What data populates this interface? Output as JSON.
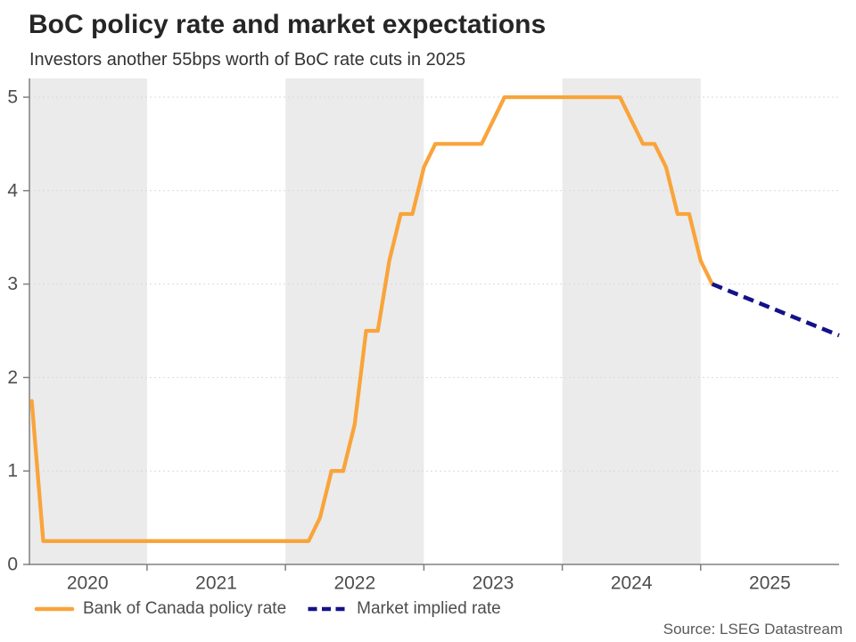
{
  "header": {
    "title": "BoC policy rate and market expectations",
    "subtitle": "Investors another 55bps worth of BoC rate cuts in 2025"
  },
  "legend": [
    {
      "label": "Bank of Canada policy rate",
      "color": "#F9A43B",
      "style": "solid"
    },
    {
      "label": "Market implied rate",
      "color": "#12128A",
      "style": "dashed"
    }
  ],
  "source": "Source: LSEG Datastream",
  "colors": {
    "background": "#FFFFFF",
    "band": "#EBEBEB",
    "gridline": "#D9D9D9",
    "axis": "#808080",
    "tick_label": "#4D4D4D",
    "title": "#262626",
    "subtitle": "#333333",
    "legend_text": "#4D4D4D",
    "source_text": "#595959",
    "policy_rate": "#F9A43B",
    "market_implied": "#12128A"
  },
  "chart_data": {
    "type": "line",
    "title": "BoC policy rate and market expectations",
    "subtitle": "Investors another 55bps worth of BoC rate cuts in 2025",
    "xlabel": "",
    "ylabel": "",
    "x_domain": [
      2020.15,
      2026.0
    ],
    "y_domain": [
      0,
      5.2
    ],
    "y_ticks": [
      0,
      1,
      2,
      3,
      4,
      5
    ],
    "x_ticks": [
      2021,
      2022,
      2023,
      2024,
      2025
    ],
    "x_band_labels": [
      {
        "label": "2020",
        "x": 2020.57
      },
      {
        "label": "2021",
        "x": 2021.5
      },
      {
        "label": "2022",
        "x": 2022.5
      },
      {
        "label": "2023",
        "x": 2023.5
      },
      {
        "label": "2024",
        "x": 2024.5
      },
      {
        "label": "2025",
        "x": 2025.5
      }
    ],
    "shaded_bands": [
      [
        2020.15,
        2021.0
      ],
      [
        2022.0,
        2023.0
      ],
      [
        2024.0,
        2025.0
      ]
    ],
    "grid": "horizontal-dashed",
    "legend_position": "bottom-left",
    "series": [
      {
        "name": "Bank of Canada policy rate",
        "slug": "policy-rate-line",
        "color": "#F9A43B",
        "dash": false,
        "width": 4.3,
        "points": [
          [
            2020.167,
            1.75
          ],
          [
            2020.25,
            0.25
          ],
          [
            2022.167,
            0.25
          ],
          [
            2022.25,
            0.5
          ],
          [
            2022.333,
            1.0
          ],
          [
            2022.417,
            1.0
          ],
          [
            2022.5,
            1.5
          ],
          [
            2022.583,
            2.5
          ],
          [
            2022.667,
            2.5
          ],
          [
            2022.75,
            3.25
          ],
          [
            2022.833,
            3.75
          ],
          [
            2022.917,
            3.75
          ],
          [
            2023.0,
            4.25
          ],
          [
            2023.083,
            4.5
          ],
          [
            2023.417,
            4.5
          ],
          [
            2023.5,
            4.75
          ],
          [
            2023.583,
            5.0
          ],
          [
            2024.417,
            5.0
          ],
          [
            2024.5,
            4.75
          ],
          [
            2024.583,
            4.5
          ],
          [
            2024.667,
            4.5
          ],
          [
            2024.75,
            4.25
          ],
          [
            2024.833,
            3.75
          ],
          [
            2024.917,
            3.75
          ],
          [
            2025.0,
            3.25
          ],
          [
            2025.083,
            3.0
          ]
        ]
      },
      {
        "name": "Market implied rate",
        "slug": "market-implied-line",
        "color": "#12128A",
        "dash": true,
        "width": 4.5,
        "points": [
          [
            2025.083,
            3.0
          ],
          [
            2026.0,
            2.45
          ]
        ]
      }
    ]
  }
}
